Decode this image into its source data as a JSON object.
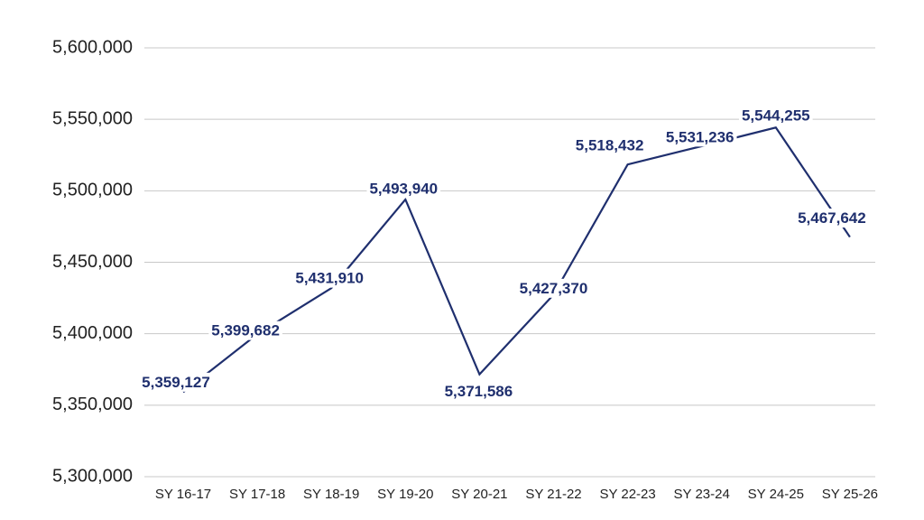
{
  "chart_data": {
    "type": "line",
    "categories": [
      "SY 16-17",
      "SY 17-18",
      "SY 18-19",
      "SY 19-20",
      "SY 20-21",
      "SY 21-22",
      "SY 22-23",
      "SY 23-24",
      "SY 24-25",
      "SY 25-26"
    ],
    "values": [
      5359127,
      5399682,
      5431910,
      5493940,
      5371586,
      5427370,
      5518432,
      5531236,
      5544255,
      5467642
    ],
    "value_labels": [
      "5,359,127",
      "5,399,682",
      "5,431,910",
      "5,493,940",
      "5,371,586",
      "5,427,370",
      "5,518,432",
      "5,531,236",
      "5,544,255",
      "5,467,642"
    ],
    "color": "#1f2f6e",
    "ylim": [
      5300000,
      5600000
    ],
    "yticks": [
      {
        "value": 5300000,
        "label": "5,300,000"
      },
      {
        "value": 5350000,
        "label": "5,350,000"
      },
      {
        "value": 5400000,
        "label": "5,400,000"
      },
      {
        "value": 5450000,
        "label": "5,450,000"
      },
      {
        "value": 5500000,
        "label": "5,500,000"
      },
      {
        "value": 5550000,
        "label": "5,550,000"
      },
      {
        "value": 5600000,
        "label": "5,600,000"
      }
    ],
    "grid": true
  }
}
